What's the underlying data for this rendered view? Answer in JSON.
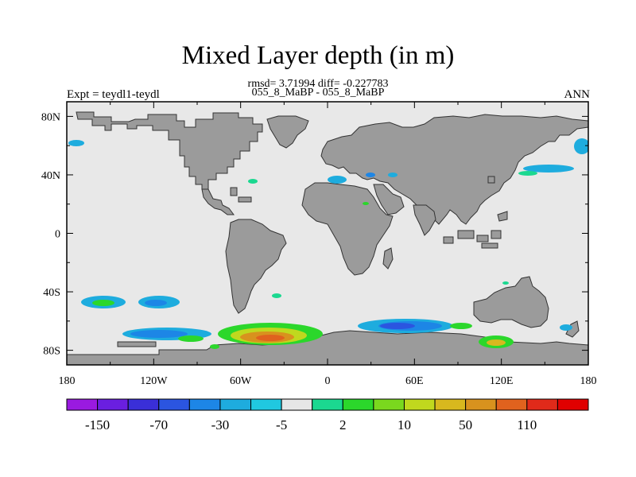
{
  "title": "Mixed Layer depth (in m)",
  "stats_line": "rmsd= 3.71994 diff= -0.227783",
  "case_line": "055_8_MaBP - 055_8_MaBP",
  "experiment": "Expt = teydl1-teydl",
  "season": "ANN",
  "map": {
    "projection": "cylindrical equidistant",
    "lon_range": [
      -180,
      180
    ],
    "lat_range": [
      -90,
      90
    ],
    "x_tick_labels": [
      "180",
      "120W",
      "60W",
      "0",
      "60E",
      "120E",
      "180"
    ],
    "y_tick_labels": [
      "80N",
      "40N",
      "0",
      "40S",
      "80S"
    ],
    "land_color": "#9b9b9b",
    "ocean_color": "#e8e8e8"
  },
  "colorbar": {
    "labels": [
      "-150",
      "-70",
      "-30",
      "-5",
      "2",
      "10",
      "50",
      "110"
    ],
    "colors": [
      "#9a1ae0",
      "#6a1fe0",
      "#3a2fd8",
      "#2b55e0",
      "#1d86e6",
      "#1eacde",
      "#20c8e0",
      "#e6e6e6",
      "#1bd890",
      "#2bd72b",
      "#7ad81e",
      "#c0d81e",
      "#d8b81e",
      "#d8921e",
      "#e0621e",
      "#e02a1a",
      "#e00000"
    ]
  }
}
